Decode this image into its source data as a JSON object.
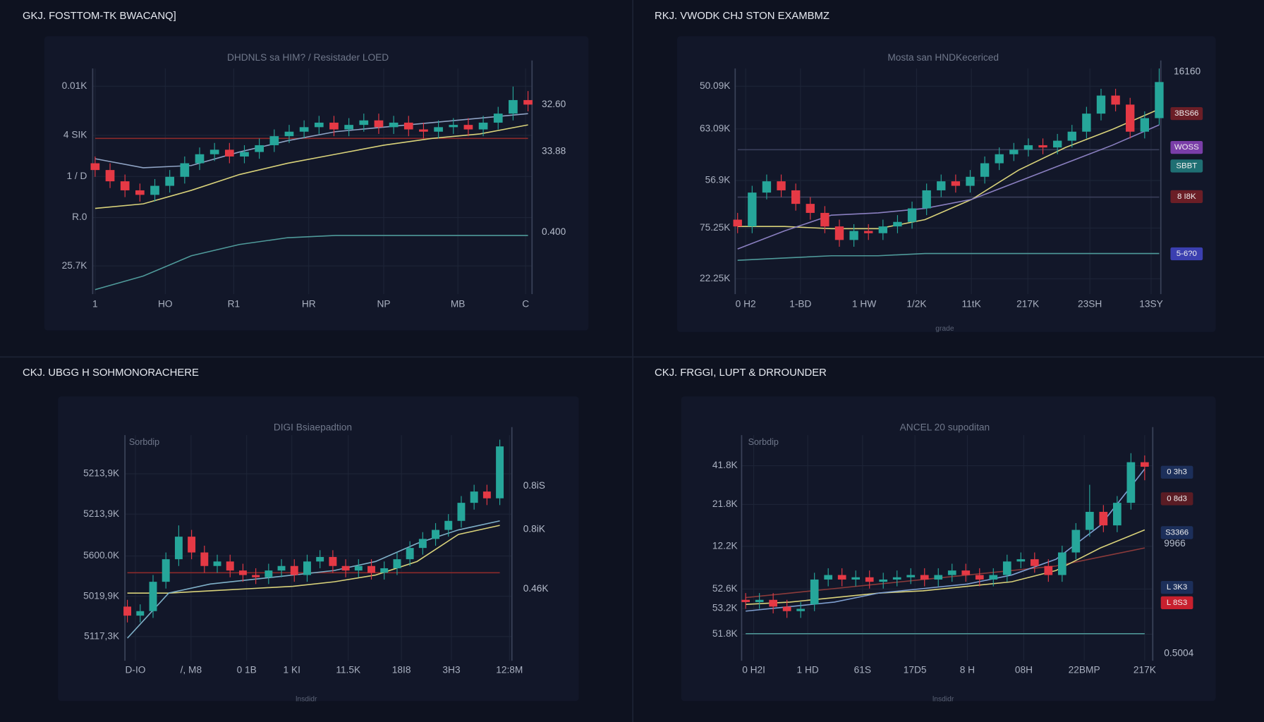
{
  "colors": {
    "up": "#26a69a",
    "down": "#e53945"
  },
  "panels": [
    {
      "title": "GKJ. FOSTTOM-TK BWACANQ]",
      "subtitle": "DHDNLS sa HIM? / Resistader LOED",
      "y_labels": [
        "0.01K",
        "4 SIK",
        "1 / D",
        "R.0",
        "25.7K"
      ],
      "x_labels": [
        "1",
        "HO",
        "R1",
        "HR",
        "NP",
        "MB",
        "C"
      ],
      "right_labels": [
        {
          "label": "32.60"
        },
        {
          "label": "33.88"
        },
        {
          "label": "0.400"
        }
      ],
      "ylim": [
        0,
        100
      ],
      "candles": [
        [
          58,
          61,
          52,
          55
        ],
        [
          55,
          58,
          47,
          50
        ],
        [
          50,
          53,
          43,
          46
        ],
        [
          46,
          49,
          41,
          44
        ],
        [
          44,
          51,
          41,
          48
        ],
        [
          48,
          55,
          45,
          52
        ],
        [
          52,
          61,
          49,
          58
        ],
        [
          58,
          65,
          55,
          62
        ],
        [
          62,
          67,
          59,
          64
        ],
        [
          64,
          67,
          58,
          61
        ],
        [
          61,
          66,
          58,
          63
        ],
        [
          63,
          69,
          60,
          66
        ],
        [
          66,
          73,
          63,
          70
        ],
        [
          70,
          75,
          67,
          72
        ],
        [
          72,
          77,
          69,
          74
        ],
        [
          74,
          79,
          71,
          76
        ],
        [
          76,
          79,
          70,
          73
        ],
        [
          73,
          78,
          70,
          75
        ],
        [
          75,
          80,
          72,
          77
        ],
        [
          77,
          80,
          71,
          74
        ],
        [
          74,
          79,
          71,
          76
        ],
        [
          76,
          79,
          70,
          73
        ],
        [
          73,
          76,
          69,
          72
        ],
        [
          72,
          77,
          69,
          74
        ],
        [
          74,
          78,
          71,
          75
        ],
        [
          75,
          78,
          70,
          73
        ],
        [
          73,
          79,
          70,
          76
        ],
        [
          76,
          83,
          73,
          80
        ],
        [
          80,
          92,
          77,
          86
        ],
        [
          86,
          90,
          81,
          84
        ]
      ],
      "lines": [
        {
          "color": "#8b2a2a",
          "values": [
            69,
            69
          ]
        },
        {
          "color": "#d9d27a",
          "values": [
            38,
            40,
            46,
            53,
            58,
            62,
            66,
            69,
            71,
            75
          ]
        },
        {
          "color": "#8fa3c4",
          "values": [
            60,
            56,
            57,
            63,
            68,
            72,
            74,
            76,
            78,
            80
          ]
        },
        {
          "color": "#4f9a9a",
          "values": [
            2,
            8,
            17,
            22,
            25,
            26,
            26,
            26,
            26,
            26
          ]
        }
      ]
    },
    {
      "title": "RKJ. VWODK CHJ STON EXAMBMZ",
      "subtitle": "Mosta san HNDKecericed",
      "y_labels": [
        "50.09K",
        "63.09K",
        "56.9K",
        "75.25K",
        "22.25K"
      ],
      "x_labels": [
        "0 H2",
        "1-BD",
        "1 HW",
        "1/2K",
        "11tK",
        "217K",
        "23SH",
        "13SY"
      ],
      "right_labels": [
        {
          "label": "16160"
        },
        {
          "label": "3BS66",
          "color": "#6b1e26"
        },
        {
          "label": "WOSS",
          "color": "#7a3ea8"
        },
        {
          "label": "SBBT",
          "color": "#1f6f73"
        },
        {
          "label": "8 I8K",
          "color": "#6b1e26"
        },
        {
          "label": "5-6?0",
          "color": "#3b3fb0"
        }
      ],
      "footer": "grade",
      "ylim": [
        0,
        100
      ],
      "candles": [
        [
          33,
          36,
          27,
          30
        ],
        [
          30,
          48,
          27,
          45
        ],
        [
          45,
          53,
          42,
          50
        ],
        [
          50,
          53,
          43,
          46
        ],
        [
          46,
          49,
          37,
          40
        ],
        [
          40,
          43,
          33,
          36
        ],
        [
          36,
          39,
          27,
          30
        ],
        [
          30,
          33,
          21,
          24
        ],
        [
          24,
          31,
          21,
          28
        ],
        [
          28,
          31,
          24,
          27
        ],
        [
          27,
          33,
          24,
          30
        ],
        [
          30,
          35,
          27,
          32
        ],
        [
          32,
          41,
          29,
          38
        ],
        [
          38,
          49,
          35,
          46
        ],
        [
          46,
          53,
          43,
          50
        ],
        [
          50,
          53,
          45,
          48
        ],
        [
          48,
          55,
          45,
          52
        ],
        [
          52,
          61,
          49,
          58
        ],
        [
          58,
          65,
          55,
          62
        ],
        [
          62,
          67,
          59,
          64
        ],
        [
          64,
          69,
          61,
          66
        ],
        [
          66,
          69,
          62,
          65
        ],
        [
          65,
          71,
          62,
          68
        ],
        [
          68,
          75,
          65,
          72
        ],
        [
          72,
          83,
          69,
          80
        ],
        [
          80,
          91,
          77,
          88
        ],
        [
          88,
          91,
          81,
          84
        ],
        [
          84,
          87,
          69,
          72
        ],
        [
          72,
          81,
          69,
          78
        ],
        [
          78,
          100,
          75,
          94
        ]
      ],
      "lines": [
        {
          "color": "#3a3f5a",
          "values": [
            64,
            64
          ]
        },
        {
          "color": "#3a3f5a",
          "values": [
            43,
            43
          ]
        },
        {
          "color": "#d9d27a",
          "values": [
            30,
            30,
            29,
            29,
            33,
            42,
            55,
            65,
            73,
            82
          ]
        },
        {
          "color": "#8a7fc0",
          "values": [
            20,
            28,
            35,
            36,
            38,
            42,
            50,
            58,
            66,
            75
          ]
        },
        {
          "color": "#4f9a9a",
          "values": [
            15,
            16,
            17,
            17,
            18,
            18,
            18,
            18,
            18,
            18
          ]
        }
      ]
    },
    {
      "title": "CKJ. UBGG H SOHMONORACHERE",
      "subtitle": "DIGI Bsiaepadtion",
      "corner_label": "Sorbdip",
      "y_labels": [
        "5213,9K",
        "5213,9K",
        "5600.0K",
        "5019,9K",
        "5117,3K"
      ],
      "x_labels": [
        "D-IO",
        "/, M8",
        "0 1B",
        "1 KI",
        "11.5K",
        "18I8",
        "3H3",
        "12:8M"
      ],
      "right_labels": [
        {
          "label": "0.8iS"
        },
        {
          "label": "0.8iK"
        },
        {
          "label": "0.46K"
        }
      ],
      "footer": "lnsdidr",
      "ylim": [
        0,
        100
      ],
      "candles": [
        [
          24,
          27,
          17,
          20
        ],
        [
          20,
          25,
          17,
          22
        ],
        [
          22,
          38,
          19,
          35
        ],
        [
          35,
          48,
          32,
          45
        ],
        [
          45,
          60,
          42,
          55
        ],
        [
          55,
          58,
          45,
          48
        ],
        [
          48,
          51,
          39,
          42
        ],
        [
          42,
          47,
          39,
          44
        ],
        [
          44,
          47,
          37,
          40
        ],
        [
          40,
          43,
          35,
          38
        ],
        [
          38,
          41,
          34,
          37
        ],
        [
          37,
          43,
          34,
          40
        ],
        [
          40,
          45,
          37,
          42
        ],
        [
          42,
          45,
          35,
          38
        ],
        [
          38,
          47,
          35,
          44
        ],
        [
          44,
          49,
          41,
          46
        ],
        [
          46,
          49,
          39,
          42
        ],
        [
          42,
          45,
          37,
          40
        ],
        [
          40,
          45,
          37,
          42
        ],
        [
          42,
          45,
          36,
          39
        ],
        [
          39,
          44,
          36,
          41
        ],
        [
          41,
          48,
          38,
          45
        ],
        [
          45,
          53,
          42,
          50
        ],
        [
          50,
          57,
          47,
          54
        ],
        [
          54,
          61,
          51,
          58
        ],
        [
          58,
          65,
          55,
          62
        ],
        [
          62,
          73,
          59,
          70
        ],
        [
          70,
          78,
          67,
          75
        ],
        [
          75,
          78,
          69,
          72
        ],
        [
          72,
          98,
          69,
          95
        ]
      ],
      "lines": [
        {
          "color": "#8b2a2a",
          "values": [
            39,
            39
          ]
        },
        {
          "color": "#d9d27a",
          "values": [
            30,
            30,
            31,
            32,
            33,
            35,
            38,
            44,
            56,
            60
          ]
        },
        {
          "color": "#7fb0c8",
          "values": [
            10,
            30,
            34,
            36,
            38,
            40,
            44,
            52,
            58,
            62
          ]
        }
      ]
    },
    {
      "title": "CKJ. FRGGI, LUPT & DRROUNDER",
      "subtitle": "ANCEL 20 supoditan",
      "corner_label": "Sorbdip",
      "y_labels": [
        "41.8K",
        "21.8K",
        "12.2K",
        "52.6K",
        "53.2K",
        "51.8K"
      ],
      "x_labels": [
        "0 H2I",
        "1 HD",
        "61S",
        "17D5",
        "8 H",
        "08H",
        "22BMP",
        "217K"
      ],
      "right_labels": [
        {
          "label": "0 3h3",
          "color": "#1c2f5a"
        },
        {
          "label": "0 8d3",
          "color": "#5a1c24"
        },
        {
          "label": "S3366",
          "color": "#1c2f5a"
        },
        {
          "label": "9966"
        },
        {
          "label": "L 3K3",
          "color": "#1c2f5a"
        },
        {
          "label": "L 8S3",
          "color": "#c8202e"
        },
        {
          "label": "0.5004"
        }
      ],
      "footer": "lnsdidr",
      "ylim": [
        0,
        100
      ],
      "candles": [
        [
          27,
          30,
          23,
          26
        ],
        [
          26,
          30,
          23,
          27
        ],
        [
          27,
          30,
          21,
          24
        ],
        [
          24,
          27,
          19,
          22
        ],
        [
          22,
          26,
          19,
          23
        ],
        [
          25,
          39,
          22,
          36
        ],
        [
          36,
          41,
          33,
          38
        ],
        [
          38,
          41,
          33,
          36
        ],
        [
          36,
          40,
          33,
          37
        ],
        [
          37,
          40,
          32,
          35
        ],
        [
          35,
          39,
          32,
          36
        ],
        [
          36,
          40,
          33,
          37
        ],
        [
          37,
          41,
          34,
          38
        ],
        [
          38,
          41,
          33,
          36
        ],
        [
          36,
          41,
          33,
          38
        ],
        [
          38,
          43,
          35,
          40
        ],
        [
          40,
          43,
          35,
          38
        ],
        [
          38,
          41,
          33,
          36
        ],
        [
          36,
          41,
          33,
          38
        ],
        [
          38,
          47,
          35,
          44
        ],
        [
          44,
          48,
          41,
          45
        ],
        [
          45,
          48,
          39,
          42
        ],
        [
          42,
          45,
          35,
          38
        ],
        [
          38,
          51,
          35,
          48
        ],
        [
          48,
          61,
          45,
          58
        ],
        [
          58,
          78,
          55,
          66
        ],
        [
          66,
          69,
          57,
          60
        ],
        [
          60,
          73,
          57,
          70
        ],
        [
          70,
          92,
          67,
          88
        ],
        [
          88,
          91,
          80,
          86
        ]
      ],
      "lines": [
        {
          "color": "#4f9a9a",
          "values": [
            12,
            12,
            12,
            12,
            12,
            12,
            12,
            12,
            12,
            12
          ]
        },
        {
          "color": "#8b3a3a",
          "values": [
            28,
            30,
            32,
            34,
            36,
            38,
            40,
            42,
            46,
            50
          ]
        },
        {
          "color": "#d9d27a",
          "values": [
            25,
            26,
            28,
            30,
            31,
            33,
            35,
            40,
            50,
            58
          ]
        },
        {
          "color": "#7f9fd0",
          "values": [
            22,
            24,
            26,
            30,
            32,
            34,
            38,
            45,
            60,
            85
          ]
        }
      ]
    }
  ]
}
